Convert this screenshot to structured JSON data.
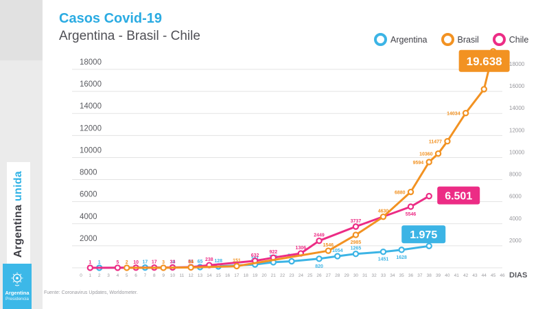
{
  "page": {
    "background": "#ffffff",
    "left_column_color": "#ebebeb"
  },
  "sidebar": {
    "banner": {
      "text_dark": "Argentina",
      "text_accent": "unida",
      "accent_color": "#2fb2e5"
    },
    "logo": {
      "line1": "Argentina",
      "line2": "Presidencia",
      "bg": "#3cb8e8"
    }
  },
  "header": {
    "title": "Casos Covid-19",
    "subtitle": "Argentina - Brasil - Chile",
    "title_color": "#2aabe2"
  },
  "legend": [
    {
      "label": "Argentina",
      "color": "#3cb4e5"
    },
    {
      "label": "Brasil",
      "color": "#f29222"
    },
    {
      "label": "Chile",
      "color": "#ec2c85"
    }
  ],
  "source": "Fuente: Coronavirus Updates, Worldometer.",
  "chart_data": {
    "type": "line",
    "title": "Casos Covid-19",
    "subtitle": "Argentina - Brasil - Chile",
    "xlabel": "DIAS",
    "ylabel": "",
    "x_range": [
      0,
      46
    ],
    "x_tick_step": 1,
    "y_ticks": [
      2000,
      4000,
      6000,
      8000,
      10000,
      12000,
      14000,
      16000,
      18000
    ],
    "ylim": [
      0,
      20500
    ],
    "grid": true,
    "legend_position": "top-right",
    "series": [
      {
        "name": "Argentina",
        "color": "#3cb4e5",
        "badge": "1.975",
        "points": [
          [
            2,
            1,
            "a"
          ],
          [
            7,
            17,
            "a"
          ],
          [
            10,
            34,
            "a"
          ],
          [
            12,
            56,
            "a"
          ],
          [
            13,
            65,
            "a"
          ],
          [
            15,
            128,
            "a"
          ],
          [
            19,
            301,
            "a"
          ],
          [
            21,
            502,
            "a"
          ],
          [
            23,
            589,
            "a"
          ],
          [
            26,
            820,
            "b"
          ],
          [
            28,
            1054,
            "a"
          ],
          [
            30,
            1265,
            "a"
          ],
          [
            33,
            1451,
            "b"
          ],
          [
            35,
            1628,
            "b"
          ],
          [
            38,
            1975,
            "n"
          ]
        ]
      },
      {
        "name": "Brasil",
        "color": "#f29222",
        "badge": "19.638",
        "points": [
          [
            5,
            2,
            "a"
          ],
          [
            9,
            3,
            "a"
          ],
          [
            12,
            34,
            "a"
          ],
          [
            17,
            151,
            "a"
          ],
          [
            27,
            1546,
            "a"
          ],
          [
            30,
            2985,
            "b"
          ],
          [
            33,
            4630,
            "a"
          ],
          [
            36,
            6880,
            "l"
          ],
          [
            38,
            9594,
            "l"
          ],
          [
            39,
            10360,
            "l"
          ],
          [
            40,
            11477,
            "l"
          ],
          [
            42,
            14034,
            "l"
          ],
          [
            44,
            16200,
            "n"
          ],
          [
            45,
            19638,
            "n"
          ]
        ]
      },
      {
        "name": "Chile",
        "color": "#ec2c85",
        "badge": "6.501",
        "points": [
          [
            1,
            1,
            "a"
          ],
          [
            4,
            5,
            "a"
          ],
          [
            6,
            10,
            "a"
          ],
          [
            8,
            17,
            "a"
          ],
          [
            10,
            33,
            "a"
          ],
          [
            12,
            61,
            "a"
          ],
          [
            14,
            238,
            "a"
          ],
          [
            19,
            632,
            "a"
          ],
          [
            21,
            922,
            "a"
          ],
          [
            24,
            1306,
            "a"
          ],
          [
            26,
            2449,
            "a"
          ],
          [
            30,
            3737,
            "a"
          ],
          [
            36,
            5546,
            "b"
          ],
          [
            38,
            6501,
            "n"
          ]
        ]
      }
    ]
  }
}
